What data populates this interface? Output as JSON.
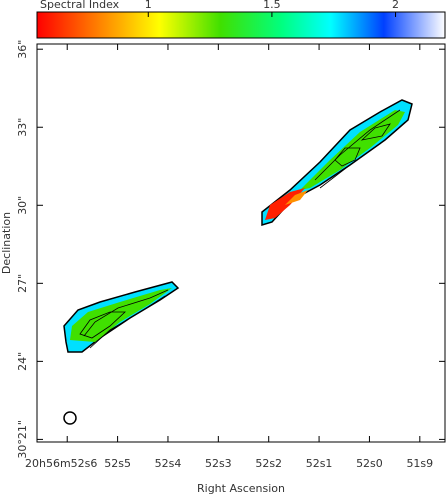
{
  "chart_data": {
    "type": "image",
    "title": "Spectral Index",
    "colorbar": {
      "lim": [
        0.55,
        2.2
      ],
      "ticks": [
        1,
        1.5,
        2
      ]
    },
    "xlabel": "Right Ascension",
    "ylabel": "Declination",
    "xlim": [
      52.66,
      51.85
    ],
    "xticks": [
      {
        "value": 52.6,
        "label": "20h56m52s6"
      },
      {
        "value": 52.5,
        "label": "52s5"
      },
      {
        "value": 52.4,
        "label": "52s4"
      },
      {
        "value": 52.3,
        "label": "52s3"
      },
      {
        "value": 52.2,
        "label": "52s2"
      },
      {
        "value": 52.1,
        "label": "52s1"
      },
      {
        "value": 52.0,
        "label": "52s0"
      },
      {
        "value": 51.9,
        "label": "51s9"
      }
    ],
    "ylim": [
      20.9,
      36.2
    ],
    "yticks": [
      {
        "value": 21,
        "label": "30°21\""
      },
      {
        "value": 24,
        "label": "24\""
      },
      {
        "value": 27,
        "label": "27\""
      },
      {
        "value": 30,
        "label": "30\""
      },
      {
        "value": 33,
        "label": "33\""
      },
      {
        "value": 36,
        "label": "36\""
      }
    ]
  }
}
